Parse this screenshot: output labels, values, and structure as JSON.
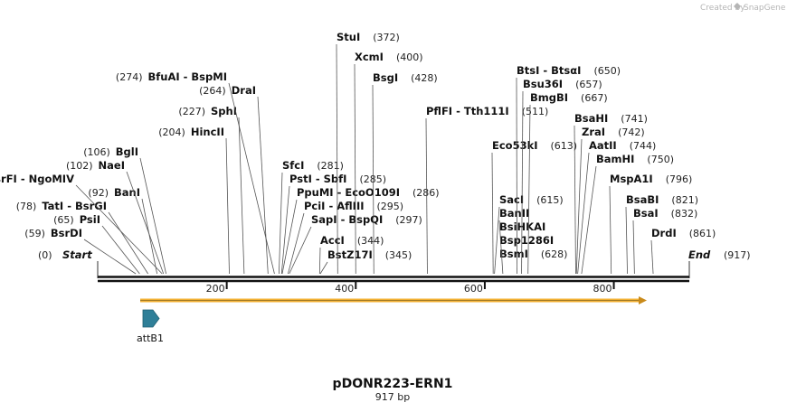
{
  "credit": {
    "text": "Created by",
    "brand": "SnapGene"
  },
  "map": {
    "name": "pDONR223-ERN1",
    "size_label": "917 bp",
    "length": 917,
    "ruler_ticks": [
      200,
      400,
      600,
      800
    ],
    "start": {
      "label": "Start",
      "pos": 0
    },
    "end": {
      "label": "End",
      "pos": 917
    },
    "sites": [
      {
        "names": [
          "BsrDI"
        ],
        "pos": 59,
        "side": "left"
      },
      {
        "names": [
          "PsiI"
        ],
        "pos": 65,
        "side": "left"
      },
      {
        "names": [
          "TatI",
          "BsrGI"
        ],
        "pos": 78,
        "side": "left"
      },
      {
        "names": [
          "BanI"
        ],
        "pos": 92,
        "side": "left"
      },
      {
        "names": [
          "BsrFI",
          "NgoMIV"
        ],
        "pos": 100,
        "side": "left"
      },
      {
        "names": [
          "NaeI"
        ],
        "pos": 102,
        "side": "left"
      },
      {
        "names": [
          "BglI"
        ],
        "pos": 106,
        "side": "left"
      },
      {
        "names": [
          "HincII"
        ],
        "pos": 204,
        "side": "left"
      },
      {
        "names": [
          "SphI"
        ],
        "pos": 227,
        "side": "left"
      },
      {
        "names": [
          "DraI"
        ],
        "pos": 264,
        "side": "left"
      },
      {
        "names": [
          "BfuAI",
          "BspMI"
        ],
        "pos": 274,
        "side": "left"
      },
      {
        "names": [
          "SfcI"
        ],
        "pos": 281,
        "side": "right"
      },
      {
        "names": [
          "PstI",
          "SbfI"
        ],
        "pos": 285,
        "side": "right"
      },
      {
        "names": [
          "PpuMI",
          "EcoO109I"
        ],
        "pos": 286,
        "side": "right"
      },
      {
        "names": [
          "PciI",
          "AflIII"
        ],
        "pos": 295,
        "side": "right"
      },
      {
        "names": [
          "SapI",
          "BspQI"
        ],
        "pos": 297,
        "side": "right"
      },
      {
        "names": [
          "AccI"
        ],
        "pos": 344,
        "side": "right"
      },
      {
        "names": [
          "BstZ17I"
        ],
        "pos": 345,
        "side": "right"
      },
      {
        "names": [
          "StuI"
        ],
        "pos": 372,
        "side": "right"
      },
      {
        "names": [
          "XcmI"
        ],
        "pos": 400,
        "side": "right"
      },
      {
        "names": [
          "BsgI"
        ],
        "pos": 428,
        "side": "right"
      },
      {
        "names": [
          "PflFI",
          "Tth111I"
        ],
        "pos": 511,
        "side": "right"
      },
      {
        "names": [
          "Eco53kI"
        ],
        "pos": 613,
        "side": "right"
      },
      {
        "names": [
          "SacI"
        ],
        "pos": 615,
        "side": "right"
      },
      {
        "names": [
          "BanII",
          "BsiHKAI",
          "Bsp1286I",
          "BsmI"
        ],
        "pos": 628,
        "side": "right"
      },
      {
        "names": [
          "BtsI",
          "BtsαI"
        ],
        "pos": 650,
        "side": "right"
      },
      {
        "names": [
          "Bsu36I"
        ],
        "pos": 657,
        "side": "right"
      },
      {
        "names": [
          "BmgBI"
        ],
        "pos": 667,
        "side": "right"
      },
      {
        "names": [
          "BsaHI"
        ],
        "pos": 741,
        "side": "right"
      },
      {
        "names": [
          "ZraI"
        ],
        "pos": 742,
        "side": "right"
      },
      {
        "names": [
          "AatII"
        ],
        "pos": 744,
        "side": "right"
      },
      {
        "names": [
          "BamHI"
        ],
        "pos": 750,
        "side": "right"
      },
      {
        "names": [
          "MspA1I"
        ],
        "pos": 796,
        "side": "right"
      },
      {
        "names": [
          "BsaBI"
        ],
        "pos": 821,
        "side": "right"
      },
      {
        "names": [
          "BsaI"
        ],
        "pos": 832,
        "side": "right"
      },
      {
        "names": [
          "DrdI"
        ],
        "pos": 861,
        "side": "right"
      }
    ],
    "features": [
      {
        "name": "attB1",
        "color": "#2f7f98"
      }
    ],
    "orf_color": "#f2b035"
  }
}
